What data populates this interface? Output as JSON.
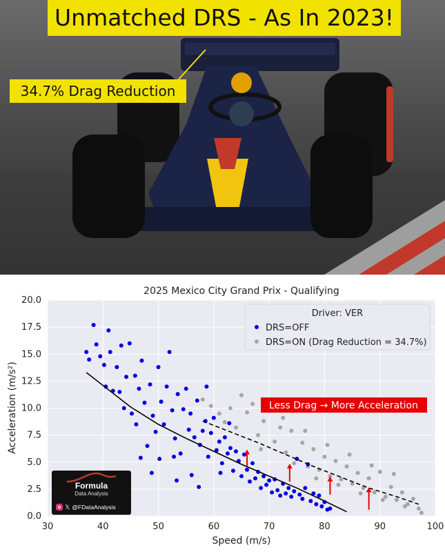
{
  "headline": "Unmatched DRS - As In 2023!",
  "callout": "34.7% Drag Reduction",
  "logo": {
    "brand": "Formula",
    "subtitle": "Data Analysis",
    "handle": "@FDataAnalysis",
    "icons": [
      "instagram-icon",
      "x-icon"
    ]
  },
  "chart_data": {
    "type": "scatter",
    "title": "2025 Mexico City Grand Prix - Qualifying",
    "xlabel": "Speed (m/s)",
    "ylabel": "Acceleration (m/s²)",
    "xlim": [
      30,
      100
    ],
    "ylim": [
      0,
      20
    ],
    "xticks": [
      "30",
      "40",
      "50",
      "60",
      "70",
      "80",
      "90",
      "100"
    ],
    "yticks": [
      "0.0",
      "2.5",
      "5.0",
      "7.5",
      "10.0",
      "12.5",
      "15.0",
      "17.5",
      "20.0"
    ],
    "grid": true,
    "legend": {
      "title": "Driver: VER",
      "placement": "top-right",
      "entries": [
        "DRS=OFF",
        "DRS=ON (Drag Reduction = 34.7%)"
      ]
    },
    "annotation": "Less Drag → More Acceleration",
    "series": [
      {
        "name": "DRS=OFF",
        "color": "#0000e6",
        "style": "scatter",
        "points": [
          [
            37.0,
            15.2
          ],
          [
            37.5,
            14.5
          ],
          [
            38.3,
            17.7
          ],
          [
            38.8,
            15.9
          ],
          [
            39.5,
            14.8
          ],
          [
            40.2,
            14.0
          ],
          [
            40.5,
            12.0
          ],
          [
            41.0,
            17.2
          ],
          [
            41.3,
            15.2
          ],
          [
            41.8,
            11.6
          ],
          [
            42.5,
            13.8
          ],
          [
            43.0,
            11.5
          ],
          [
            43.3,
            15.8
          ],
          [
            43.8,
            10.0
          ],
          [
            44.2,
            12.9
          ],
          [
            44.8,
            16.0
          ],
          [
            45.2,
            9.5
          ],
          [
            45.8,
            13.0
          ],
          [
            46.0,
            8.5
          ],
          [
            46.5,
            11.8
          ],
          [
            47.0,
            14.4
          ],
          [
            47.5,
            10.5
          ],
          [
            48.0,
            6.5
          ],
          [
            48.5,
            12.2
          ],
          [
            49.0,
            9.3
          ],
          [
            49.5,
            7.8
          ],
          [
            50.0,
            13.8
          ],
          [
            50.5,
            10.6
          ],
          [
            51.0,
            8.5
          ],
          [
            51.5,
            12.0
          ],
          [
            52.0,
            15.2
          ],
          [
            52.5,
            9.8
          ],
          [
            53.0,
            7.2
          ],
          [
            53.5,
            11.3
          ],
          [
            54.0,
            5.8
          ],
          [
            54.5,
            9.9
          ],
          [
            55.0,
            11.8
          ],
          [
            55.5,
            8.0
          ],
          [
            56.0,
            3.8
          ],
          [
            56.5,
            7.3
          ],
          [
            57.0,
            10.7
          ],
          [
            57.5,
            6.6
          ],
          [
            58.0,
            7.9
          ],
          [
            58.5,
            8.8
          ],
          [
            59.0,
            5.5
          ],
          [
            59.5,
            7.7
          ],
          [
            60.0,
            9.1
          ],
          [
            60.5,
            6.1
          ],
          [
            61.0,
            6.9
          ],
          [
            61.5,
            4.9
          ],
          [
            62.0,
            7.3
          ],
          [
            62.5,
            5.8
          ],
          [
            63.0,
            6.3
          ],
          [
            63.5,
            4.2
          ],
          [
            64.0,
            6.0
          ],
          [
            64.5,
            5.1
          ],
          [
            65.0,
            3.7
          ],
          [
            65.5,
            5.7
          ],
          [
            66.0,
            4.3
          ],
          [
            66.5,
            3.2
          ],
          [
            67.0,
            4.9
          ],
          [
            67.5,
            3.5
          ],
          [
            68.0,
            4.1
          ],
          [
            68.5,
            2.6
          ],
          [
            69.0,
            3.7
          ],
          [
            69.5,
            2.9
          ],
          [
            70.0,
            3.3
          ],
          [
            70.5,
            2.2
          ],
          [
            71.0,
            3.4
          ],
          [
            71.5,
            2.4
          ],
          [
            72.0,
            1.9
          ],
          [
            72.5,
            3.0
          ],
          [
            73.0,
            2.1
          ],
          [
            73.5,
            2.6
          ],
          [
            74.0,
            1.8
          ],
          [
            74.5,
            2.3
          ],
          [
            75.0,
            5.3
          ],
          [
            75.5,
            2.0
          ],
          [
            76.0,
            1.6
          ],
          [
            76.5,
            2.6
          ],
          [
            77.0,
            4.8
          ],
          [
            77.5,
            1.4
          ],
          [
            78.0,
            2.1
          ],
          [
            78.5,
            1.1
          ],
          [
            79.0,
            1.9
          ],
          [
            79.5,
            0.9
          ],
          [
            80.0,
            1.3
          ],
          [
            80.5,
            0.6
          ],
          [
            81.0,
            0.7
          ],
          [
            52.8,
            5.5
          ],
          [
            48.8,
            4.0
          ],
          [
            44.3,
            2.7
          ],
          [
            55.8,
            9.5
          ],
          [
            58.7,
            12.0
          ],
          [
            62.8,
            8.6
          ],
          [
            50.2,
            5.3
          ],
          [
            46.8,
            5.4
          ],
          [
            53.3,
            3.3
          ],
          [
            57.3,
            2.7
          ],
          [
            61.2,
            4.0
          ]
        ]
      },
      {
        "name": "DRS=ON (Drag Reduction = 34.7%)",
        "color": "#a6a6a6",
        "style": "scatter",
        "points": [
          [
            58.0,
            10.8
          ],
          [
            59.5,
            10.2
          ],
          [
            61.0,
            9.5
          ],
          [
            62.0,
            8.7
          ],
          [
            63.0,
            10.0
          ],
          [
            64.0,
            8.2
          ],
          [
            65.0,
            11.2
          ],
          [
            66.0,
            9.6
          ],
          [
            67.0,
            10.4
          ],
          [
            68.0,
            7.5
          ],
          [
            69.0,
            8.8
          ],
          [
            70.0,
            10.2
          ],
          [
            71.0,
            6.9
          ],
          [
            72.0,
            8.2
          ],
          [
            73.0,
            5.9
          ],
          [
            74.0,
            7.9
          ],
          [
            75.0,
            5.3
          ],
          [
            76.0,
            6.8
          ],
          [
            77.0,
            4.6
          ],
          [
            78.0,
            6.2
          ],
          [
            79.0,
            4.3
          ],
          [
            80.0,
            5.5
          ],
          [
            81.0,
            3.7
          ],
          [
            82.0,
            5.1
          ],
          [
            83.0,
            3.4
          ],
          [
            84.0,
            4.6
          ],
          [
            85.0,
            3.0
          ],
          [
            86.0,
            4.0
          ],
          [
            87.0,
            2.6
          ],
          [
            88.0,
            3.5
          ],
          [
            89.0,
            2.2
          ],
          [
            90.0,
            4.1
          ],
          [
            91.0,
            1.8
          ],
          [
            92.0,
            2.7
          ],
          [
            93.0,
            1.5
          ],
          [
            94.0,
            2.2
          ],
          [
            95.0,
            1.1
          ],
          [
            96.0,
            1.6
          ],
          [
            97.0,
            0.7
          ],
          [
            97.5,
            0.3
          ],
          [
            72.5,
            9.1
          ],
          [
            76.5,
            7.9
          ],
          [
            80.5,
            6.6
          ],
          [
            84.5,
            5.7
          ],
          [
            88.5,
            4.7
          ],
          [
            92.5,
            3.9
          ],
          [
            68.5,
            6.2
          ],
          [
            74.5,
            4.9
          ],
          [
            78.5,
            3.5
          ],
          [
            82.5,
            2.9
          ],
          [
            86.5,
            2.1
          ],
          [
            90.5,
            1.5
          ],
          [
            94.5,
            0.9
          ]
        ]
      },
      {
        "name": "DRS=OFF fit",
        "color": "#000000",
        "style": "solid-line",
        "points": [
          [
            37,
            13.3
          ],
          [
            40,
            12.1
          ],
          [
            45,
            10.1
          ],
          [
            50,
            8.5
          ],
          [
            55,
            7.2
          ],
          [
            60,
            6.0
          ],
          [
            65,
            4.8
          ],
          [
            70,
            3.7
          ],
          [
            75,
            2.6
          ],
          [
            80,
            1.4
          ],
          [
            84,
            0.4
          ]
        ]
      },
      {
        "name": "DRS=ON fit",
        "color": "#000000",
        "style": "dashed-line",
        "points": [
          [
            58,
            8.8
          ],
          [
            63,
            7.8
          ],
          [
            68,
            6.8
          ],
          [
            73,
            5.7
          ],
          [
            78,
            4.6
          ],
          [
            83,
            3.6
          ],
          [
            88,
            2.6
          ],
          [
            93,
            1.8
          ],
          [
            97,
            1.1
          ]
        ]
      }
    ],
    "arrows": [
      [
        66,
        4.6,
        6.1
      ],
      [
        73.7,
        3.2,
        4.8
      ],
      [
        81,
        2.0,
        3.6
      ],
      [
        88,
        0.6,
        2.6
      ]
    ]
  }
}
